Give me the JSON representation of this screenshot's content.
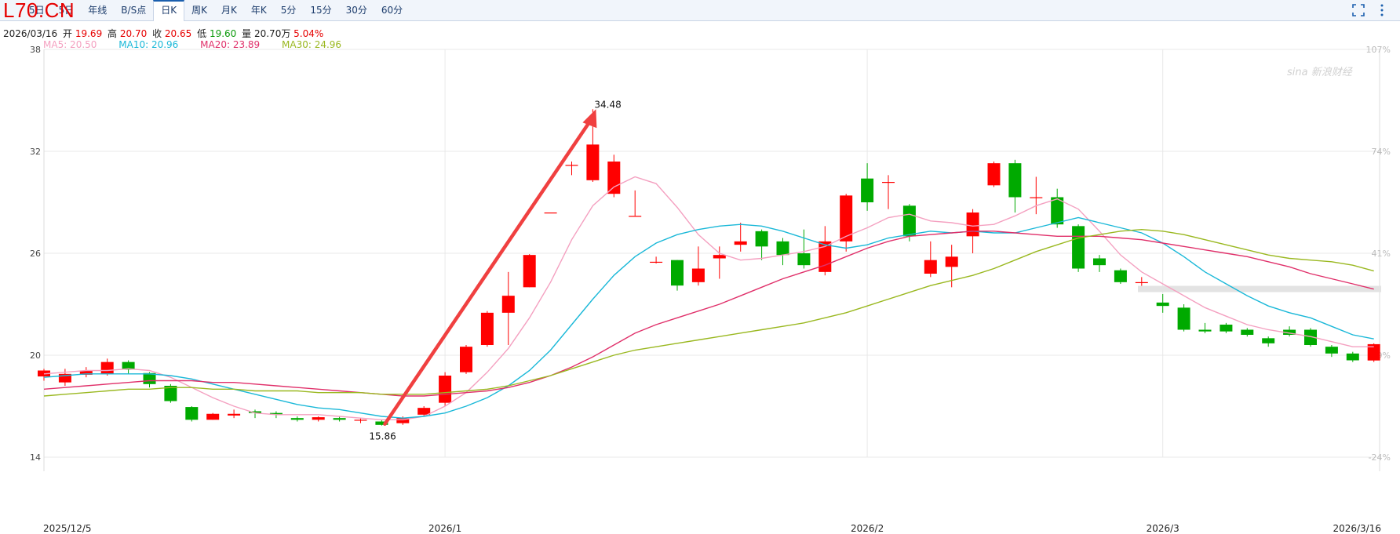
{
  "symbol": "L70.CN",
  "tabs": [
    "5日",
    "5日",
    "年线",
    "B/S点",
    "日K",
    "周K",
    "月K",
    "年K",
    "5分",
    "15分",
    "30分",
    "60分"
  ],
  "active_tab": 4,
  "quote": {
    "date": "2026/03/16",
    "open_label": "开",
    "open": "19.69",
    "high_label": "高",
    "high": "20.70",
    "close_label": "收",
    "close": "20.65",
    "low_label": "低",
    "low": "19.60",
    "vol_label": "量",
    "vol": "20.70万",
    "change": "5.04%"
  },
  "ma_legend": [
    {
      "label": "MA5: 20.50",
      "color": "#f4a0c0"
    },
    {
      "label": "MA10: 20.96",
      "color": "#1ab8d8"
    },
    {
      "label": "MA20: 23.89",
      "color": "#e0306a"
    },
    {
      "label": "MA30: 24.96",
      "color": "#9ab820"
    }
  ],
  "colors": {
    "up": "#ff0000",
    "down": "#00aa00",
    "arrow": "#f04040",
    "grid": "#e8e8e8"
  },
  "watermark": "sina 新浪财经",
  "chart_data": {
    "type": "candlestick",
    "y_ticks": [
      "38",
      "32",
      "26",
      "20",
      "14"
    ],
    "right_ticks": [
      "107%",
      "74%",
      "41%",
      "9%",
      "-24%"
    ],
    "ylim": [
      14,
      38
    ],
    "x_labels": [
      "2025/12/5",
      "2026/1",
      "2026/2",
      "2026/3",
      "2026/3/16"
    ],
    "x_label_index": [
      0,
      19,
      39,
      53,
      62
    ],
    "annotations": [
      {
        "text": "34.48",
        "index": 26,
        "value": 34.48
      },
      {
        "text": "15.86",
        "index": 16,
        "value": 15.86
      }
    ],
    "candles": [
      [
        18.75,
        19.1,
        19.2,
        18.5
      ],
      [
        18.4,
        18.9,
        19.2,
        18.2
      ],
      [
        18.85,
        19.1,
        19.3,
        18.7
      ],
      [
        18.9,
        19.6,
        19.8,
        18.8
      ],
      [
        19.6,
        19.15,
        19.7,
        18.9
      ],
      [
        18.95,
        18.3,
        19.0,
        18.1
      ],
      [
        18.2,
        17.3,
        18.3,
        17.2
      ],
      [
        16.95,
        16.2,
        17.0,
        16.1
      ],
      [
        16.2,
        16.55,
        16.6,
        16.2
      ],
      [
        16.45,
        16.55,
        16.8,
        16.3
      ],
      [
        16.7,
        16.6,
        16.8,
        16.3
      ],
      [
        16.6,
        16.5,
        16.7,
        16.3
      ],
      [
        16.3,
        16.2,
        16.4,
        16.1
      ],
      [
        16.2,
        16.35,
        16.4,
        16.1
      ],
      [
        16.3,
        16.2,
        16.4,
        16.1
      ],
      [
        16.15,
        16.2,
        16.3,
        16.0
      ],
      [
        16.1,
        15.9,
        16.2,
        15.86
      ],
      [
        16.0,
        16.3,
        16.4,
        15.9
      ],
      [
        16.5,
        16.9,
        17.0,
        16.4
      ],
      [
        17.2,
        18.8,
        19.0,
        17.0
      ],
      [
        19.0,
        20.5,
        20.6,
        18.9
      ],
      [
        20.6,
        22.5,
        22.6,
        20.5
      ],
      [
        22.5,
        23.5,
        24.9,
        20.6
      ],
      [
        24.0,
        25.9,
        25.95,
        24.0
      ],
      [
        28.4,
        28.4,
        28.4,
        28.4
      ],
      [
        31.2,
        31.2,
        31.4,
        30.6
      ],
      [
        30.3,
        32.4,
        34.48,
        30.2
      ],
      [
        29.5,
        31.4,
        31.8,
        29.3
      ],
      [
        28.2,
        28.2,
        29.7,
        28.2
      ],
      [
        25.5,
        25.5,
        25.8,
        25.4
      ],
      [
        25.6,
        24.1,
        25.6,
        23.8
      ],
      [
        24.3,
        25.1,
        26.4,
        24.1
      ],
      [
        25.7,
        25.9,
        26.4,
        24.5
      ],
      [
        26.5,
        26.7,
        27.8,
        26.1
      ],
      [
        27.3,
        26.4,
        27.4,
        25.6
      ],
      [
        26.7,
        25.9,
        26.9,
        25.3
      ],
      [
        26.0,
        25.3,
        27.4,
        25.1
      ],
      [
        24.9,
        26.7,
        27.6,
        24.7
      ],
      [
        26.7,
        29.4,
        29.5,
        26.1
      ],
      [
        30.4,
        29.0,
        31.3,
        28.5
      ],
      [
        30.2,
        30.2,
        30.6,
        28.6
      ],
      [
        28.8,
        27.0,
        28.9,
        26.7
      ],
      [
        24.8,
        25.6,
        26.7,
        24.6
      ],
      [
        25.2,
        25.8,
        26.5,
        24.0
      ],
      [
        27.0,
        28.4,
        28.6,
        26.0
      ],
      [
        30.0,
        31.3,
        31.4,
        29.9
      ],
      [
        31.3,
        29.3,
        31.5,
        28.4
      ],
      [
        29.3,
        29.3,
        30.5,
        28.3
      ],
      [
        29.3,
        27.7,
        29.8,
        27.5
      ],
      [
        27.6,
        25.1,
        27.7,
        24.9
      ],
      [
        25.7,
        25.3,
        25.9,
        24.9
      ],
      [
        25.0,
        24.3,
        25.1,
        24.2
      ],
      [
        24.3,
        24.3,
        24.6,
        24.0
      ],
      [
        23.1,
        22.9,
        23.6,
        22.5
      ],
      [
        22.8,
        21.5,
        23.0,
        21.4
      ],
      [
        21.5,
        21.4,
        21.9,
        21.3
      ],
      [
        21.8,
        21.4,
        21.9,
        21.3
      ],
      [
        21.5,
        21.2,
        21.6,
        21.1
      ],
      [
        21.0,
        20.7,
        21.1,
        20.5
      ],
      [
        21.5,
        21.2,
        21.7,
        21.1
      ],
      [
        21.5,
        20.6,
        21.6,
        20.5
      ],
      [
        20.5,
        20.1,
        20.6,
        19.9
      ],
      [
        20.1,
        19.7,
        20.2,
        19.6
      ],
      [
        19.69,
        20.65,
        20.7,
        19.6
      ]
    ],
    "series": [
      {
        "name": "MA5",
        "color": "#f4a0c0",
        "values": [
          18.9,
          19.0,
          19.1,
          19.1,
          19.2,
          19.1,
          18.7,
          18.1,
          17.5,
          17.0,
          16.6,
          16.5,
          16.5,
          16.5,
          16.4,
          16.3,
          16.2,
          16.2,
          16.4,
          17.0,
          17.8,
          19.0,
          20.4,
          22.2,
          24.3,
          26.8,
          28.8,
          29.9,
          30.5,
          30.1,
          28.7,
          27.1,
          26.0,
          25.6,
          25.7,
          25.9,
          26.1,
          26.4,
          27.0,
          27.5,
          28.1,
          28.3,
          27.9,
          27.8,
          27.6,
          27.7,
          28.2,
          28.8,
          29.2,
          28.6,
          27.3,
          25.9,
          24.9,
          24.2,
          23.5,
          22.8,
          22.3,
          21.8,
          21.5,
          21.3,
          21.1,
          20.8,
          20.5,
          20.5
        ]
      },
      {
        "name": "MA10",
        "color": "#1ab8d8",
        "values": [
          18.7,
          18.8,
          18.9,
          18.9,
          18.9,
          18.9,
          18.8,
          18.6,
          18.3,
          18.0,
          17.7,
          17.4,
          17.1,
          16.9,
          16.8,
          16.6,
          16.4,
          16.3,
          16.4,
          16.6,
          17.0,
          17.5,
          18.2,
          19.1,
          20.3,
          21.8,
          23.3,
          24.7,
          25.8,
          26.6,
          27.1,
          27.4,
          27.6,
          27.7,
          27.6,
          27.3,
          26.9,
          26.5,
          26.3,
          26.5,
          26.9,
          27.1,
          27.3,
          27.2,
          27.3,
          27.2,
          27.2,
          27.5,
          27.8,
          28.1,
          27.8,
          27.5,
          27.2,
          26.6,
          25.8,
          24.9,
          24.2,
          23.5,
          22.9,
          22.5,
          22.2,
          21.7,
          21.2,
          20.96
        ]
      },
      {
        "name": "MA20",
        "color": "#e0306a",
        "values": [
          18.0,
          18.1,
          18.2,
          18.3,
          18.4,
          18.5,
          18.5,
          18.5,
          18.4,
          18.4,
          18.3,
          18.2,
          18.1,
          18.0,
          17.9,
          17.8,
          17.7,
          17.6,
          17.6,
          17.7,
          17.8,
          17.9,
          18.1,
          18.4,
          18.8,
          19.3,
          19.9,
          20.6,
          21.3,
          21.8,
          22.2,
          22.6,
          23.0,
          23.5,
          24.0,
          24.5,
          24.9,
          25.3,
          25.8,
          26.3,
          26.7,
          27.0,
          27.1,
          27.2,
          27.3,
          27.3,
          27.2,
          27.1,
          27.0,
          27.0,
          27.0,
          26.9,
          26.8,
          26.6,
          26.4,
          26.2,
          26.0,
          25.8,
          25.5,
          25.2,
          24.8,
          24.5,
          24.2,
          23.89
        ]
      },
      {
        "name": "MA30",
        "color": "#9ab820",
        "values": [
          17.6,
          17.7,
          17.8,
          17.9,
          18.0,
          18.0,
          18.1,
          18.1,
          18.0,
          18.0,
          17.9,
          17.9,
          17.9,
          17.8,
          17.8,
          17.8,
          17.7,
          17.7,
          17.7,
          17.8,
          17.9,
          18.0,
          18.2,
          18.5,
          18.8,
          19.2,
          19.6,
          20.0,
          20.3,
          20.5,
          20.7,
          20.9,
          21.1,
          21.3,
          21.5,
          21.7,
          21.9,
          22.2,
          22.5,
          22.9,
          23.3,
          23.7,
          24.1,
          24.4,
          24.7,
          25.1,
          25.6,
          26.1,
          26.5,
          26.9,
          27.1,
          27.3,
          27.4,
          27.3,
          27.1,
          26.8,
          26.5,
          26.2,
          25.9,
          25.7,
          25.6,
          25.5,
          25.3,
          24.96
        ]
      }
    ]
  }
}
